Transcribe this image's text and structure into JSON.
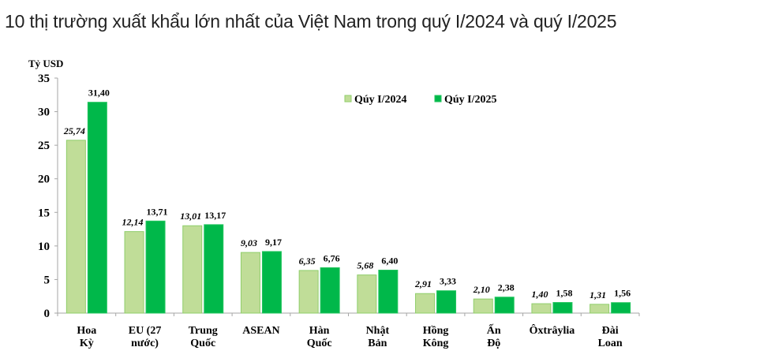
{
  "title": "10 thị trường xuất khẩu lớn nhất của Việt Nam trong quý I/2024 và quý I/2025",
  "chart_data": {
    "type": "bar",
    "title": "10 thị trường xuất khẩu lớn nhất của Việt Nam trong quý I/2024 và quý I/2025",
    "xlabel": "",
    "ylabel": "Tỷ USD",
    "ylim": [
      0,
      35
    ],
    "yticks": [
      0,
      5,
      10,
      15,
      20,
      25,
      30,
      35
    ],
    "grid": false,
    "legend_position": "top-right-inside",
    "categories": [
      [
        "Hoa",
        "Kỳ"
      ],
      [
        "EU (27",
        "nước)"
      ],
      [
        "Trung",
        "Quốc"
      ],
      [
        "ASEAN"
      ],
      [
        "Hàn",
        "Quốc"
      ],
      [
        "Nhật",
        "Bản"
      ],
      [
        "Hồng",
        "Kông"
      ],
      [
        "Ấn",
        "Độ"
      ],
      [
        "Ôxtrâylia"
      ],
      [
        "Đài",
        "Loan"
      ]
    ],
    "series": [
      {
        "name": "Qúy I/2024",
        "color": "#c0dd98",
        "values": [
          25.74,
          12.14,
          13.01,
          9.03,
          6.35,
          5.68,
          2.91,
          2.1,
          1.4,
          1.31
        ],
        "labels": [
          "25,74",
          "12,14",
          "13,01",
          "9,03",
          "6,35",
          "5,68",
          "2,91",
          "2,10",
          "1,40",
          "1,31"
        ]
      },
      {
        "name": "Qúy I/2025",
        "color": "#00b84a",
        "values": [
          31.4,
          13.71,
          13.17,
          9.17,
          6.76,
          6.4,
          3.33,
          2.38,
          1.58,
          1.56
        ],
        "labels": [
          "31,40",
          "13,71",
          "13,17",
          "9,17",
          "6,76",
          "6,40",
          "3,33",
          "2,38",
          "1,58",
          "1,56"
        ]
      }
    ]
  }
}
